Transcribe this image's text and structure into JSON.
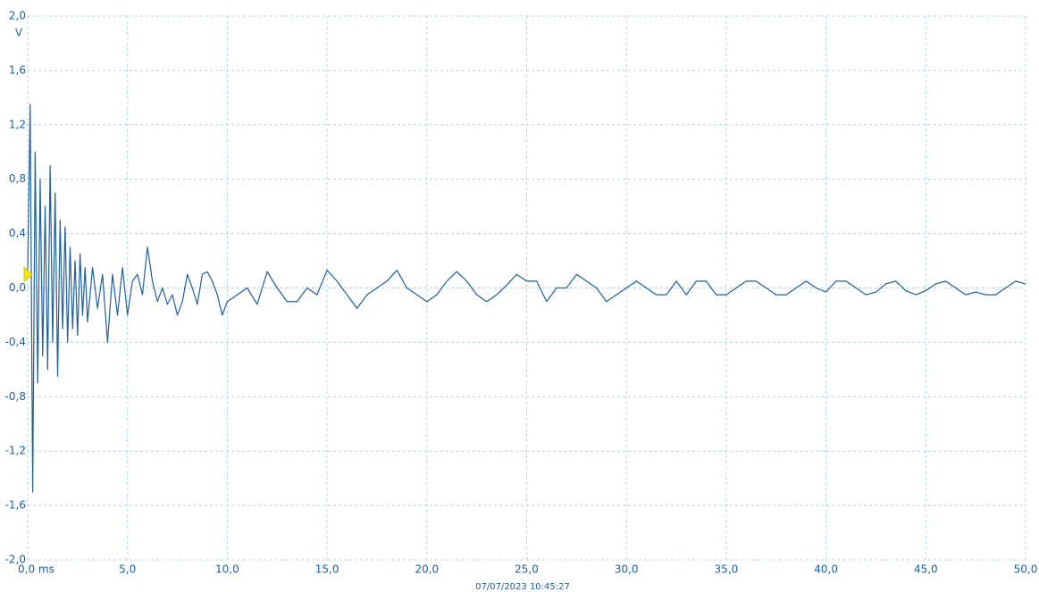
{
  "chart_data": {
    "type": "line",
    "color": "#1f5f9a",
    "grid": true,
    "y_unit": "V",
    "timestamp": "07/07/2023 10:45:27",
    "trigger_level": 0.1,
    "xlim": [
      0,
      50
    ],
    "ylim": [
      -2,
      2
    ],
    "xticks": [
      {
        "value": 0,
        "label": "0,0 ms"
      },
      {
        "value": 5,
        "label": "5,0"
      },
      {
        "value": 10,
        "label": "10,0"
      },
      {
        "value": 15,
        "label": "15,0"
      },
      {
        "value": 20,
        "label": "20,0"
      },
      {
        "value": 25,
        "label": "25,0"
      },
      {
        "value": 30,
        "label": "30,0"
      },
      {
        "value": 35,
        "label": "35,0"
      },
      {
        "value": 40,
        "label": "40,0"
      },
      {
        "value": 45,
        "label": "45,0"
      },
      {
        "value": 50,
        "label": "50,0"
      }
    ],
    "yticks": [
      {
        "value": 2,
        "label": "2,0"
      },
      {
        "value": 1.6,
        "label": "1,6"
      },
      {
        "value": 1.2,
        "label": "1,2"
      },
      {
        "value": 0.8,
        "label": "0,8"
      },
      {
        "value": 0.4,
        "label": "0,4"
      },
      {
        "value": 0,
        "label": "0,0"
      },
      {
        "value": -0.4,
        "label": "-0,4"
      },
      {
        "value": -0.8,
        "label": "-0,8"
      },
      {
        "value": -1.2,
        "label": "-1,2"
      },
      {
        "value": -1.6,
        "label": "-1,6"
      },
      {
        "value": -2,
        "label": "-2,0"
      }
    ],
    "x": [
      0,
      0.125,
      0.25,
      0.375,
      0.5,
      0.625,
      0.75,
      0.875,
      1.0,
      1.125,
      1.25,
      1.375,
      1.5,
      1.625,
      1.75,
      1.875,
      2.0,
      2.125,
      2.25,
      2.375,
      2.5,
      2.625,
      2.75,
      2.875,
      3.0,
      3.25,
      3.5,
      3.75,
      4.0,
      4.25,
      4.5,
      4.75,
      5.0,
      5.25,
      5.5,
      5.75,
      6.0,
      6.25,
      6.5,
      6.75,
      7.0,
      7.25,
      7.5,
      7.75,
      8.0,
      8.25,
      8.5,
      8.75,
      9.0,
      9.25,
      9.5,
      9.75,
      10.0,
      10.5,
      11.0,
      11.5,
      12.0,
      12.5,
      13.0,
      13.5,
      14.0,
      14.5,
      15.0,
      15.5,
      16.0,
      16.5,
      17.0,
      17.5,
      18.0,
      18.5,
      19.0,
      19.5,
      20.0,
      20.5,
      21.0,
      21.5,
      22.0,
      22.5,
      23.0,
      23.5,
      24.0,
      24.5,
      25.0,
      25.5,
      26.0,
      26.5,
      27.0,
      27.5,
      28.0,
      28.5,
      29.0,
      29.5,
      30.0,
      30.5,
      31.0,
      31.5,
      32.0,
      32.5,
      33.0,
      33.5,
      34.0,
      34.5,
      35.0,
      35.5,
      36.0,
      36.5,
      37.0,
      37.5,
      38.0,
      38.5,
      39.0,
      39.5,
      40.0,
      40.5,
      41.0,
      41.5,
      42.0,
      42.5,
      43.0,
      43.5,
      44.0,
      44.5,
      45.0,
      45.5,
      46.0,
      46.5,
      47.0,
      47.5,
      48.0,
      48.5,
      49.0,
      49.5,
      50.0
    ],
    "values": [
      0.1,
      1.35,
      -1.5,
      1.0,
      -0.7,
      0.8,
      -0.5,
      0.6,
      -0.6,
      0.9,
      -0.4,
      0.7,
      -0.65,
      0.5,
      -0.3,
      0.45,
      -0.4,
      0.3,
      -0.3,
      0.2,
      -0.35,
      0.25,
      -0.2,
      0.15,
      -0.25,
      0.15,
      -0.15,
      0.1,
      -0.4,
      0.1,
      -0.2,
      0.15,
      -0.2,
      0.05,
      0.1,
      -0.05,
      0.3,
      0.05,
      -0.1,
      0.0,
      -0.12,
      -0.05,
      -0.2,
      -0.1,
      0.1,
      0.0,
      -0.12,
      0.1,
      0.12,
      0.05,
      -0.05,
      -0.2,
      -0.1,
      -0.05,
      0.0,
      -0.12,
      0.12,
      0.0,
      -0.1,
      -0.1,
      0.0,
      -0.05,
      0.13,
      0.05,
      -0.05,
      -0.15,
      -0.05,
      0.0,
      0.05,
      0.13,
      0.0,
      -0.05,
      -0.1,
      -0.05,
      0.05,
      0.12,
      0.05,
      -0.05,
      -0.1,
      -0.05,
      0.02,
      0.1,
      0.05,
      0.05,
      -0.1,
      0.0,
      0.0,
      0.1,
      0.05,
      0.0,
      -0.1,
      -0.05,
      0.0,
      0.05,
      0.0,
      -0.05,
      -0.05,
      0.05,
      -0.05,
      0.05,
      0.05,
      -0.05,
      -0.05,
      0.0,
      0.05,
      0.05,
      0.0,
      -0.05,
      -0.05,
      0.0,
      0.05,
      0.0,
      -0.03,
      0.05,
      0.05,
      0.0,
      -0.05,
      -0.03,
      0.03,
      0.05,
      -0.02,
      -0.05,
      -0.02,
      0.03,
      0.05,
      0.0,
      -0.05,
      -0.03,
      -0.05,
      -0.05,
      0.0,
      0.05,
      0.03
    ]
  }
}
